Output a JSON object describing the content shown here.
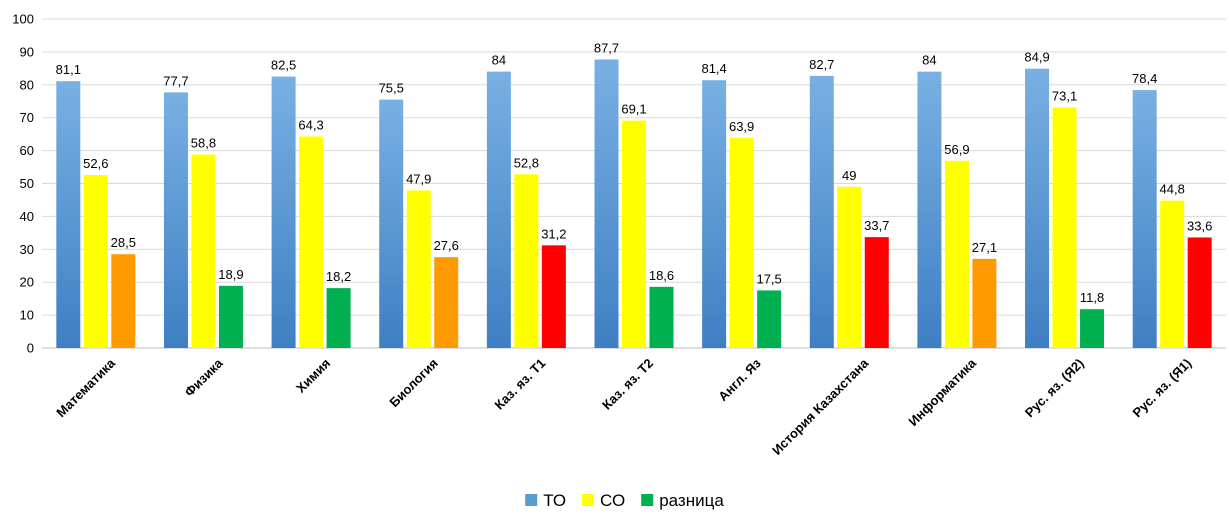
{
  "chart_data": {
    "type": "bar",
    "categories": [
      "Математика",
      "Физика",
      "Химия",
      "Биология",
      "Каз. яз. Т1",
      "Каз. яз. Т2",
      "Англ. Яз",
      "История Казахстана",
      "Информатика",
      "Рус. яз. (Я2)",
      "Рус. яз. (Я1)"
    ],
    "series": [
      {
        "name": "ТО",
        "values": [
          81.1,
          77.7,
          82.5,
          75.5,
          84,
          87.7,
          81.4,
          82.7,
          84,
          84.9,
          78.4
        ],
        "labels": [
          "81,1",
          "77,7",
          "82,5",
          "75,5",
          "84",
          "87,7",
          "81,4",
          "82,7",
          "84",
          "84,9",
          "78,4"
        ],
        "color": "#5b9bd5"
      },
      {
        "name": "СО",
        "values": [
          52.6,
          58.8,
          64.3,
          47.9,
          52.8,
          69.1,
          63.9,
          49,
          56.9,
          73.1,
          44.8
        ],
        "labels": [
          "52,6",
          "58,8",
          "64,3",
          "47,9",
          "52,8",
          "69,1",
          "63,9",
          "49",
          "56,9",
          "73,1",
          "44,8"
        ],
        "color": "#ffff00"
      },
      {
        "name": "разница",
        "values": [
          28.5,
          18.9,
          18.2,
          27.6,
          31.2,
          18.6,
          17.5,
          33.7,
          27.1,
          11.8,
          33.6
        ],
        "labels": [
          "28,5",
          "18,9",
          "18,2",
          "27,6",
          "31,2",
          "18,6",
          "17,5",
          "33,7",
          "27,1",
          "11,8",
          "33,6"
        ],
        "color": "#00b050",
        "point_colors": [
          "#ff9900",
          "#00b050",
          "#00b050",
          "#ff9900",
          "#ff0000",
          "#00b050",
          "#00b050",
          "#ff0000",
          "#ff9900",
          "#00b050",
          "#ff0000"
        ]
      }
    ],
    "ylim": [
      0,
      100
    ],
    "yticks": [
      0,
      10,
      20,
      30,
      40,
      50,
      60,
      70,
      80,
      90,
      100
    ],
    "grid": true,
    "legend_position": "bottom",
    "title": "",
    "xlabel": "",
    "ylabel": ""
  }
}
